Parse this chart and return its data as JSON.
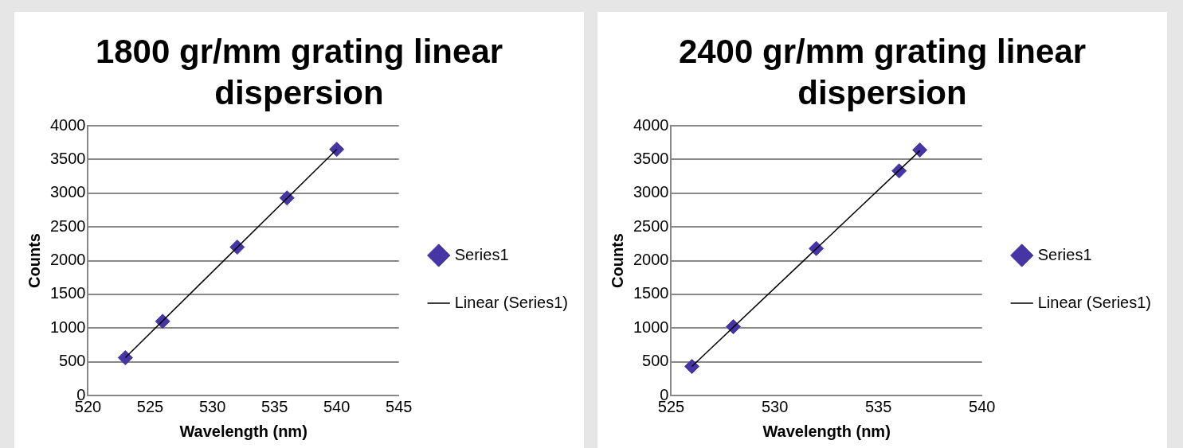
{
  "chart_data": [
    {
      "type": "scatter",
      "title": "1800 gr/mm grating linear dispersion",
      "xlabel": "Wavelength (nm)",
      "ylabel": "Counts",
      "xlim": [
        520,
        545
      ],
      "xticks": [
        520,
        525,
        530,
        535,
        540,
        545
      ],
      "ylim": [
        0,
        4000
      ],
      "yticks": [
        0,
        500,
        1000,
        1500,
        2000,
        2500,
        3000,
        3500,
        4000
      ],
      "grid": "y",
      "legend": "right",
      "series": [
        {
          "name": "Series1",
          "color": "#4535a5",
          "marker": "diamond",
          "x": [
            523,
            526,
            532,
            536,
            540
          ],
          "values": [
            560,
            1100,
            2200,
            2930,
            3650
          ]
        },
        {
          "name": "Linear (Series1)",
          "type": "line",
          "color": "#000000",
          "marker": "none",
          "x": [
            523,
            540
          ],
          "values": [
            560,
            3650
          ]
        }
      ]
    },
    {
      "type": "scatter",
      "title": "2400 gr/mm grating linear dispersion",
      "xlabel": "Wavelength (nm)",
      "ylabel": "Counts",
      "xlim": [
        525,
        540
      ],
      "xticks": [
        525,
        530,
        535,
        540
      ],
      "ylim": [
        0,
        4000
      ],
      "yticks": [
        0,
        500,
        1000,
        1500,
        2000,
        2500,
        3000,
        3500,
        4000
      ],
      "grid": "y",
      "legend": "right",
      "series": [
        {
          "name": "Series1",
          "color": "#4535a5",
          "marker": "diamond",
          "x": [
            526,
            528,
            532,
            536,
            537
          ],
          "values": [
            430,
            1020,
            2180,
            3330,
            3640
          ]
        },
        {
          "name": "Linear (Series1)",
          "type": "line",
          "color": "#000000",
          "marker": "none",
          "x": [
            526,
            537
          ],
          "values": [
            430,
            3630
          ]
        }
      ]
    }
  ]
}
